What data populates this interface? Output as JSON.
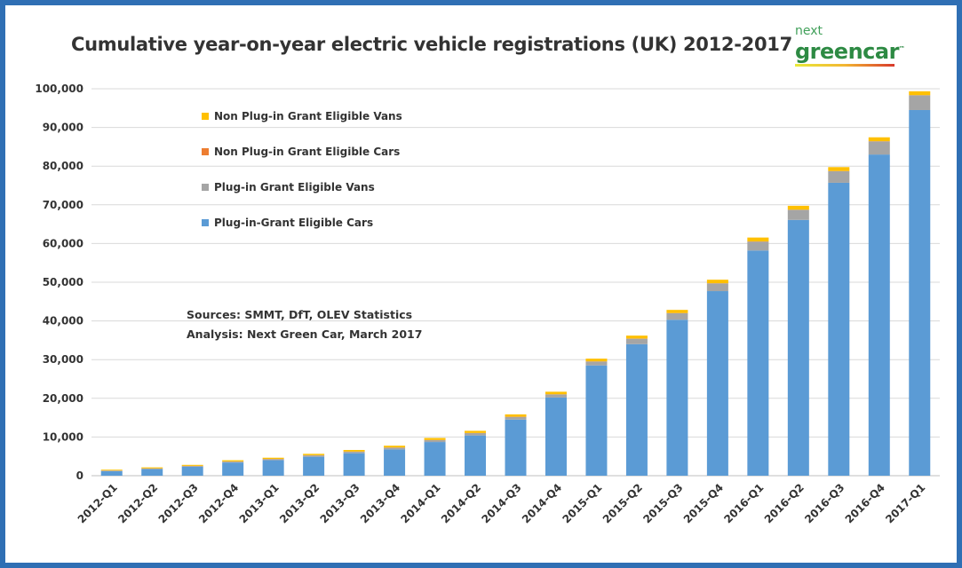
{
  "title": "Cumulative year-on-year electric vehicle registrations (UK) 2012-2017",
  "logo": {
    "top": "next",
    "main": "greencar",
    "tm": "™"
  },
  "notes": {
    "sources": "Sources: SMMT, DfT, OLEV Statistics",
    "analysis": "Analysis: Next Green Car, March 2017"
  },
  "colors": {
    "frame": "#2f6fb4",
    "cars": "#5b9bd5",
    "vans": "#a5a5a5",
    "non_cars": "#ed7d31",
    "non_vans": "#ffc000"
  },
  "chart_data": {
    "type": "bar",
    "stacked": true,
    "title": "Cumulative year-on-year electric vehicle registrations (UK) 2012-2017",
    "xlabel": "",
    "ylabel": "",
    "ylim": [
      0,
      100000
    ],
    "yticks": [
      "0",
      "10,000",
      "20,000",
      "30,000",
      "40,000",
      "50,000",
      "60,000",
      "70,000",
      "80,000",
      "90,000",
      "100,000"
    ],
    "grid": true,
    "legend_position": "top-left",
    "categories": [
      "2012-Q1",
      "2012-Q2",
      "2012-Q3",
      "2012-Q4",
      "2013-Q1",
      "2013-Q2",
      "2013-Q3",
      "2013-Q4",
      "2014-Q1",
      "2014-Q2",
      "2014-Q3",
      "2014-Q4",
      "2015-Q1",
      "2015-Q2",
      "2015-Q3",
      "2015-Q4",
      "2016-Q1",
      "2016-Q2",
      "2016-Q3",
      "2016-Q4",
      "2017-Q1"
    ],
    "series": [
      {
        "name": "Plug-in-Grant Eligible Cars",
        "color": "#5b9bd5",
        "values": [
          1200,
          1700,
          2300,
          3400,
          4000,
          4900,
          5800,
          6800,
          8700,
          10400,
          14500,
          20200,
          28500,
          34000,
          40300,
          47700,
          58200,
          66100,
          75700,
          83000,
          94500
        ]
      },
      {
        "name": "Plug-in Grant Eligible Vans",
        "color": "#a5a5a5",
        "values": [
          100,
          150,
          200,
          250,
          300,
          350,
          400,
          450,
          500,
          600,
          700,
          800,
          1000,
          1400,
          1700,
          2000,
          2300,
          2600,
          3000,
          3400,
          3800
        ]
      },
      {
        "name": "Non Plug-in Grant Eligible Cars",
        "color": "#ed7d31",
        "values": [
          50,
          50,
          50,
          50,
          50,
          50,
          50,
          50,
          50,
          50,
          50,
          50,
          50,
          50,
          50,
          50,
          50,
          50,
          50,
          50,
          50
        ]
      },
      {
        "name": "Non Plug-in Grant Eligible Vans",
        "color": "#ffc000",
        "values": [
          200,
          250,
          250,
          300,
          300,
          350,
          400,
          450,
          500,
          550,
          600,
          650,
          700,
          750,
          800,
          900,
          1000,
          1000,
          1000,
          1000,
          1000
        ]
      }
    ]
  }
}
